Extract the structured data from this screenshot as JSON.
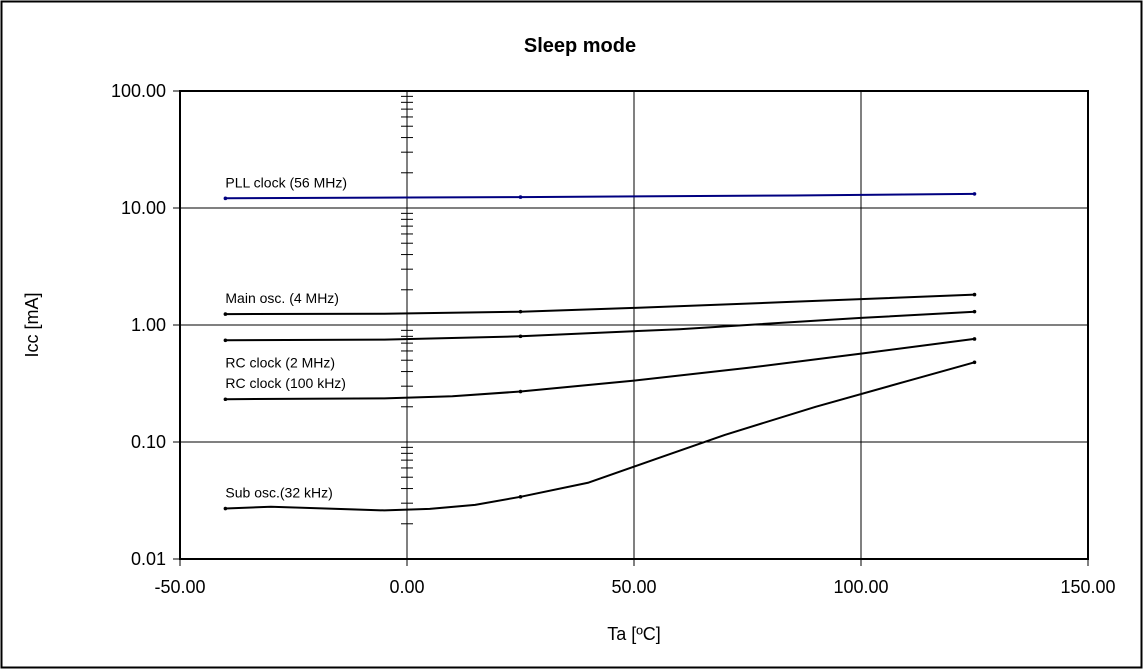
{
  "chart_data": {
    "type": "line",
    "title": "Sleep mode",
    "xlabel": "Ta [ºC]",
    "ylabel": "Icc [mA]",
    "xlim": [
      -50,
      150
    ],
    "ylim": [
      0.01,
      100
    ],
    "y_scale": "log",
    "x_ticks": [
      "-50.00",
      "0.00",
      "50.00",
      "100.00",
      "150.00"
    ],
    "y_ticks": [
      "0.01",
      "0.10",
      "1.00",
      "10.00",
      "100.00"
    ],
    "grid": true,
    "legend": "none (series labels placed inline)",
    "series": [
      {
        "name": "PLL clock (56 MHz)",
        "color": "#000080",
        "x": [
          -40,
          0,
          25,
          85,
          125
        ],
        "y": [
          12.1,
          12.3,
          12.4,
          12.8,
          13.2
        ]
      },
      {
        "name": "Main osc. (4 MHz)",
        "color": "#000000",
        "x": [
          -40,
          -5,
          25,
          50,
          85,
          125
        ],
        "y": [
          1.24,
          1.25,
          1.3,
          1.4,
          1.58,
          1.82
        ]
      },
      {
        "name": "RC clock (2 MHz)",
        "color": "#000000",
        "x": [
          -40,
          -5,
          25,
          60,
          100,
          125
        ],
        "y": [
          0.74,
          0.75,
          0.8,
          0.92,
          1.15,
          1.3
        ]
      },
      {
        "name": "RC clock (100 kHz)",
        "color": "#000000",
        "x": [
          -40,
          -5,
          10,
          25,
          50,
          75,
          100,
          125
        ],
        "y": [
          0.232,
          0.236,
          0.246,
          0.27,
          0.335,
          0.43,
          0.57,
          0.76
        ]
      },
      {
        "name": "Sub osc.(32 kHz)",
        "color": "#000000",
        "x": [
          -40,
          -30,
          -5,
          5,
          15,
          25,
          40,
          55,
          70,
          90,
          110,
          125
        ],
        "y": [
          0.027,
          0.028,
          0.026,
          0.0268,
          0.029,
          0.034,
          0.045,
          0.072,
          0.115,
          0.2,
          0.33,
          0.48
        ]
      }
    ]
  }
}
